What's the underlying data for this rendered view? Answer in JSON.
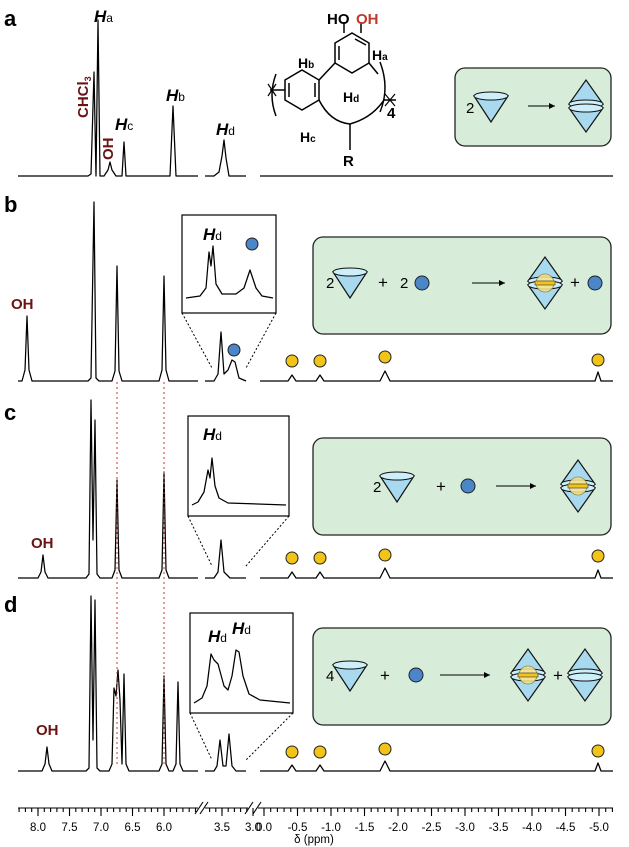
{
  "panels": {
    "a": {
      "label": "a",
      "peak_ha": "H",
      "peak_ha_sub": "a",
      "peak_hb": "H",
      "peak_hb_sub": "b",
      "peak_hc": "H",
      "peak_hc_sub": "c",
      "peak_hd": "H",
      "peak_hd_sub": "d",
      "solvent": "CHCl",
      "solvent_sub": "3",
      "oh": "OH",
      "scheme": {
        "coef1": "2"
      }
    },
    "b": {
      "label": "b",
      "oh": "OH",
      "inset": {
        "peak": "H",
        "peak_sub": "d"
      },
      "scheme": {
        "coef1": "2",
        "plus1": "+",
        "coef2": "2",
        "plus2": "+"
      }
    },
    "c": {
      "label": "c",
      "oh": "OH",
      "inset": {
        "peak": "H",
        "peak_sub": "d"
      },
      "scheme": {
        "coef1": "2",
        "plus1": "+"
      }
    },
    "d": {
      "label": "d",
      "oh": "OH",
      "inset": {
        "peak1": "H",
        "peak1_sub": "d",
        "peak2": "H",
        "peak2_sub": "d"
      },
      "scheme": {
        "coef1": "4",
        "plus1": "+",
        "plus2": "+"
      }
    }
  },
  "structure": {
    "ho1": "HO",
    "oh2": "OH",
    "ha": "H",
    "ha_sub": "a",
    "hb": "H",
    "hb_sub": "b",
    "hc": "H",
    "hc_sub": "c",
    "hd": "H",
    "hd_sub": "d",
    "r": "R",
    "n": "4"
  },
  "axis": {
    "label": "δ (ppm)",
    "ticks_left": [
      "8.0",
      "7.5",
      "7.0",
      "6.5",
      "6.0"
    ],
    "ticks_mid": [
      "3.5",
      "3.0"
    ],
    "ticks_right": [
      "0.0",
      "-0.5",
      "-1.0",
      "-1.5",
      "-2.0",
      "-2.5",
      "-3.0",
      "-3.5",
      "-4.0",
      "-4.5",
      "-5.0"
    ]
  },
  "colors": {
    "oh_label": "#6b1212",
    "dashed_guide": "#c0392b",
    "scheme_box": "#d7ecd9",
    "cone": "#a9d9ee",
    "guest_blue": "#4a86c8",
    "guest_yellow": "#f2c418"
  }
}
